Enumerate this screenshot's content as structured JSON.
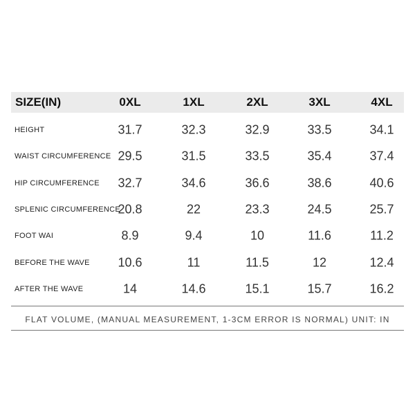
{
  "table": {
    "header": [
      "SIZE(IN)",
      "0XL",
      "1XL",
      "2XL",
      "3XL",
      "4XL"
    ],
    "rows": [
      [
        "HEIGHT",
        "31.7",
        "32.3",
        "32.9",
        "33.5",
        "34.1"
      ],
      [
        "WAIST CIRCUMFERENCE",
        "29.5",
        "31.5",
        "33.5",
        "35.4",
        "37.4"
      ],
      [
        "HIP CIRCUMFERENCE",
        "32.7",
        "34.6",
        "36.6",
        "38.6",
        "40.6"
      ],
      [
        "SPLENIC CIRCUMFERENCE",
        "20.8",
        "22",
        "23.3",
        "24.5",
        "25.7"
      ],
      [
        "FOOT WAI",
        "8.9",
        "9.4",
        "10",
        "11.6",
        "11.2"
      ],
      [
        "BEFORE THE WAVE",
        "10.6",
        "11",
        "11.5",
        "12",
        "12.4"
      ],
      [
        "AFTER THE WAVE",
        "14",
        "14.6",
        "15.1",
        "15.7",
        "16.2"
      ]
    ]
  },
  "footer": "FLAT VOLUME, (MANUAL MEASUREMENT, 1-3CM ERROR IS NORMAL) UNIT: IN"
}
